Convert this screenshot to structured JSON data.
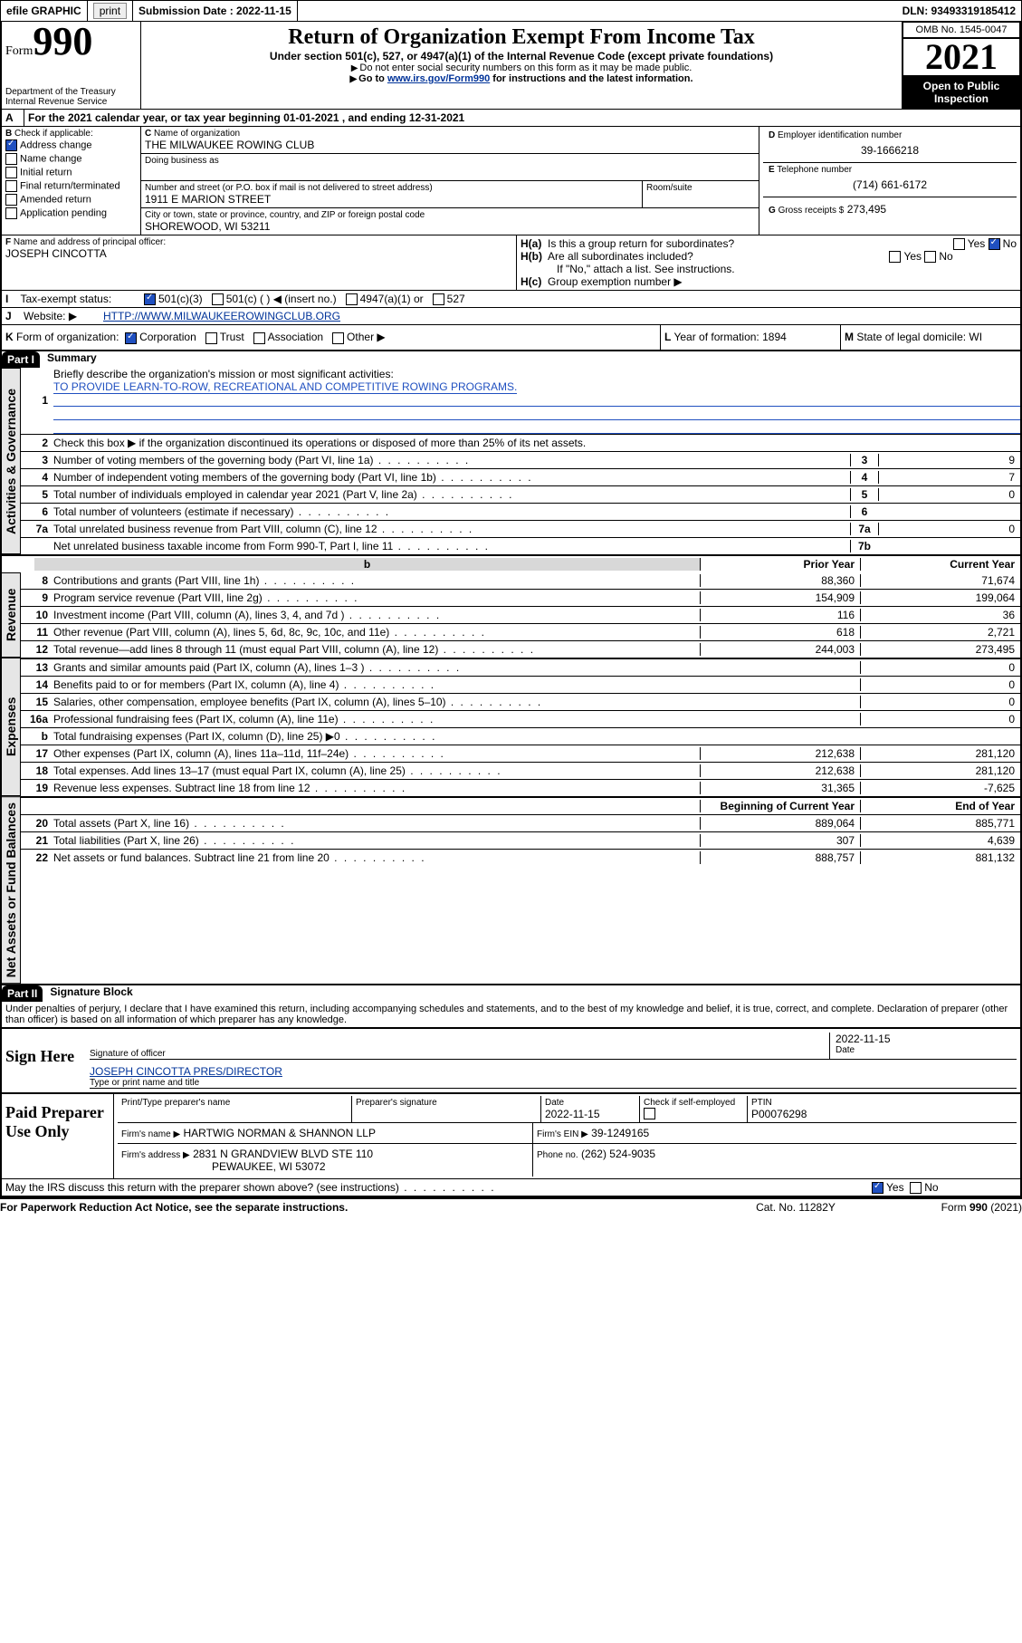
{
  "topbar": {
    "efile": "efile GRAPHIC",
    "print": "print",
    "submission_label": "Submission Date : 2022-11-15",
    "dln_label": "DLN: 93493319185412"
  },
  "header": {
    "form_word": "Form",
    "form_num": "990",
    "dept": "Department of the Treasury",
    "irs": "Internal Revenue Service",
    "title": "Return of Organization Exempt From Income Tax",
    "sub1": "Under section 501(c), 527, or 4947(a)(1) of the Internal Revenue Code (except private foundations)",
    "sub2": "Do not enter social security numbers on this form as it may be made public.",
    "sub3_pre": "Go to ",
    "sub3_link": "www.irs.gov/Form990",
    "sub3_post": " for instructions and the latest information.",
    "omb": "OMB No. 1545-0047",
    "year": "2021",
    "open": "Open to Public Inspection"
  },
  "periodA": "For the 2021 calendar year, or tax year beginning 01-01-2021   , and ending 12-31-2021",
  "B": {
    "label": "Check if applicable:",
    "items": [
      "Address change",
      "Name change",
      "Initial return",
      "Final return/terminated",
      "Amended return",
      "Application pending"
    ],
    "checked_index": 0
  },
  "C": {
    "name_lbl": "Name of organization",
    "name": "THE MILWAUKEE ROWING CLUB",
    "dba_lbl": "Doing business as",
    "addr_lbl": "Number and street (or P.O. box if mail is not delivered to street address)",
    "room_lbl": "Room/suite",
    "addr": "1911 E MARION STREET",
    "city_lbl": "City or town, state or province, country, and ZIP or foreign postal code",
    "city": "SHOREWOOD, WI  53211"
  },
  "D": {
    "lbl": "Employer identification number",
    "val": "39-1666218"
  },
  "E": {
    "lbl": "Telephone number",
    "val": "(714) 661-6172"
  },
  "G": {
    "lbl": "Gross receipts $",
    "val": "273,495"
  },
  "F": {
    "lbl": "Name and address of principal officer:",
    "val": "JOSEPH CINCOTTA"
  },
  "H": {
    "a": "Is this a group return for subordinates?",
    "b": "Are all subordinates included?",
    "b_note": "If \"No,\" attach a list. See instructions.",
    "c": "Group exemption number ▶",
    "yes": "Yes",
    "no": "No"
  },
  "I": {
    "lbl": "Tax-exempt status:",
    "opts": [
      "501(c)(3)",
      "501(c) (  ) ◀ (insert no.)",
      "4947(a)(1) or",
      "527"
    ],
    "checked": 0
  },
  "J": {
    "lbl": "Website: ▶",
    "val": "HTTP://WWW.MILWAUKEEROWINGCLUB.ORG"
  },
  "K": {
    "lbl": "Form of organization:",
    "opts": [
      "Corporation",
      "Trust",
      "Association",
      "Other ▶"
    ],
    "checked": 0
  },
  "L": {
    "lbl": "Year of formation:",
    "val": "1894"
  },
  "M": {
    "lbl": "State of legal domicile:",
    "val": "WI"
  },
  "part1": {
    "bar": "Part I",
    "title": "Summary",
    "q1": "Briefly describe the organization's mission or most significant activities:",
    "mission": "TO PROVIDE LEARN-TO-ROW, RECREATIONAL AND COMPETITIVE ROWING PROGRAMS.",
    "q2": "Check this box ▶   if the organization discontinued its operations or disposed of more than 25% of its net assets.",
    "headers": {
      "prior": "Prior Year",
      "current": "Current Year",
      "boy": "Beginning of Current Year",
      "eoy": "End of Year"
    }
  },
  "tabs": {
    "gov": "Activities & Governance",
    "rev": "Revenue",
    "exp": "Expenses",
    "na": "Net Assets or Fund Balances"
  },
  "gov_rows": [
    {
      "n": "3",
      "d": "Number of voting members of the governing body (Part VI, line 1a)",
      "k": "3",
      "v": "9"
    },
    {
      "n": "4",
      "d": "Number of independent voting members of the governing body (Part VI, line 1b)",
      "k": "4",
      "v": "7"
    },
    {
      "n": "5",
      "d": "Total number of individuals employed in calendar year 2021 (Part V, line 2a)",
      "k": "5",
      "v": "0"
    },
    {
      "n": "6",
      "d": "Total number of volunteers (estimate if necessary)",
      "k": "6",
      "v": ""
    },
    {
      "n": "7a",
      "d": "Total unrelated business revenue from Part VIII, column (C), line 12",
      "k": "7a",
      "v": "0"
    },
    {
      "n": "",
      "d": "Net unrelated business taxable income from Form 990-T, Part I, line 11",
      "k": "7b",
      "v": ""
    }
  ],
  "rev_rows": [
    {
      "n": "8",
      "d": "Contributions and grants (Part VIII, line 1h)",
      "p": "88,360",
      "c": "71,674"
    },
    {
      "n": "9",
      "d": "Program service revenue (Part VIII, line 2g)",
      "p": "154,909",
      "c": "199,064"
    },
    {
      "n": "10",
      "d": "Investment income (Part VIII, column (A), lines 3, 4, and 7d )",
      "p": "116",
      "c": "36"
    },
    {
      "n": "11",
      "d": "Other revenue (Part VIII, column (A), lines 5, 6d, 8c, 9c, 10c, and 11e)",
      "p": "618",
      "c": "2,721"
    },
    {
      "n": "12",
      "d": "Total revenue—add lines 8 through 11 (must equal Part VIII, column (A), line 12)",
      "p": "244,003",
      "c": "273,495"
    }
  ],
  "exp_rows": [
    {
      "n": "13",
      "d": "Grants and similar amounts paid (Part IX, column (A), lines 1–3 )",
      "p": "",
      "c": "0"
    },
    {
      "n": "14",
      "d": "Benefits paid to or for members (Part IX, column (A), line 4)",
      "p": "",
      "c": "0"
    },
    {
      "n": "15",
      "d": "Salaries, other compensation, employee benefits (Part IX, column (A), lines 5–10)",
      "p": "",
      "c": "0"
    },
    {
      "n": "16a",
      "d": "Professional fundraising fees (Part IX, column (A), line 11e)",
      "p": "",
      "c": "0"
    },
    {
      "n": "b",
      "d": "Total fundraising expenses (Part IX, column (D), line 25) ▶0",
      "p": "shade",
      "c": "shade"
    },
    {
      "n": "17",
      "d": "Other expenses (Part IX, column (A), lines 11a–11d, 11f–24e)",
      "p": "212,638",
      "c": "281,120"
    },
    {
      "n": "18",
      "d": "Total expenses. Add lines 13–17 (must equal Part IX, column (A), line 25)",
      "p": "212,638",
      "c": "281,120"
    },
    {
      "n": "19",
      "d": "Revenue less expenses. Subtract line 18 from line 12",
      "p": "31,365",
      "c": "-7,625"
    }
  ],
  "na_rows": [
    {
      "n": "20",
      "d": "Total assets (Part X, line 16)",
      "p": "889,064",
      "c": "885,771"
    },
    {
      "n": "21",
      "d": "Total liabilities (Part X, line 26)",
      "p": "307",
      "c": "4,639"
    },
    {
      "n": "22",
      "d": "Net assets or fund balances. Subtract line 21 from line 20",
      "p": "888,757",
      "c": "881,132"
    }
  ],
  "part2": {
    "bar": "Part II",
    "title": "Signature Block",
    "declaration": "Under penalties of perjury, I declare that I have examined this return, including accompanying schedules and statements, and to the best of my knowledge and belief, it is true, correct, and complete. Declaration of preparer (other than officer) is based on all information of which preparer has any knowledge."
  },
  "sign": {
    "block": "Sign Here",
    "sig_lbl": "Signature of officer",
    "date_lbl": "Date",
    "date": "2022-11-15",
    "name": "JOSEPH CINCOTTA PRES/DIRECTOR",
    "name_lbl": "Type or print name and title"
  },
  "paid": {
    "block": "Paid Preparer Use Only",
    "col1": "Print/Type preparer's name",
    "col2": "Preparer's signature",
    "col3": "Date",
    "date": "2022-11-15",
    "check_lbl": "Check       if self-employed",
    "ptin_lbl": "PTIN",
    "ptin": "P00076298",
    "firm_name_lbl": "Firm's name    ▶",
    "firm_name": "HARTWIG NORMAN & SHANNON LLP",
    "firm_ein_lbl": "Firm's EIN ▶",
    "firm_ein": "39-1249165",
    "firm_addr_lbl": "Firm's address ▶",
    "firm_addr1": "2831 N GRANDVIEW BLVD STE 110",
    "firm_addr2": "PEWAUKEE, WI  53072",
    "phone_lbl": "Phone no.",
    "phone": "(262) 524-9035"
  },
  "discuss": {
    "q": "May the IRS discuss this return with the preparer shown above? (see instructions)",
    "yes": "Yes",
    "no": "No"
  },
  "footer": {
    "left": "For Paperwork Reduction Act Notice, see the separate instructions.",
    "mid": "Cat. No. 11282Y",
    "right_pre": "Form ",
    "right_bold": "990",
    "right_post": " (2021)"
  }
}
